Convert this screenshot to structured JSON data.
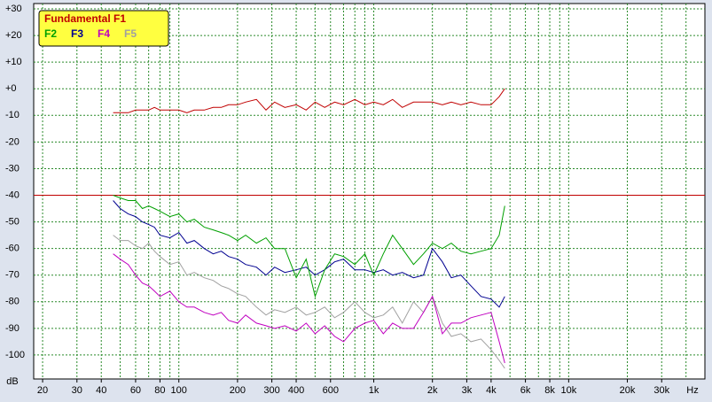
{
  "chart_data": {
    "type": "line",
    "x_scale": "log",
    "grid": true,
    "legend": "upper left",
    "x_label": "Hz",
    "y_label": "dB",
    "xlim": [
      18,
      50000
    ],
    "ylim": [
      -109,
      32
    ],
    "reference_level": -40,
    "reference_color": "#c00000",
    "xticks": [
      20,
      30,
      40,
      60,
      80,
      100,
      200,
      300,
      400,
      600,
      {
        "value": 1000,
        "label": "1k"
      },
      {
        "value": 2000,
        "label": "2k"
      },
      {
        "value": 3000,
        "label": "3k"
      },
      {
        "value": 4000,
        "label": "4k"
      },
      {
        "value": 6000,
        "label": "6k"
      },
      {
        "value": 8000,
        "label": "8k"
      },
      {
        "value": 10000,
        "label": "10k"
      },
      {
        "value": 20000,
        "label": "20k"
      },
      {
        "value": 30000,
        "label": "30k"
      }
    ],
    "xgrid": [
      20,
      30,
      40,
      50,
      60,
      70,
      80,
      90,
      100,
      200,
      300,
      400,
      500,
      600,
      700,
      800,
      900,
      1000,
      2000,
      3000,
      4000,
      5000,
      6000,
      7000,
      8000,
      9000,
      10000,
      20000,
      30000,
      40000
    ],
    "yticks": [
      {
        "value": 30,
        "label": "+30"
      },
      {
        "value": 20,
        "label": "+20"
      },
      {
        "value": 10,
        "label": "+10"
      },
      {
        "value": 0,
        "label": "+0"
      },
      -10,
      -20,
      -30,
      -40,
      -50,
      -60,
      -70,
      -80,
      -90,
      -100
    ],
    "x": [
      46,
      50,
      55,
      60,
      65,
      70,
      75,
      80,
      90,
      100,
      110,
      120,
      135,
      150,
      165,
      180,
      200,
      220,
      250,
      280,
      310,
      350,
      400,
      450,
      500,
      560,
      630,
      700,
      800,
      900,
      1000,
      1120,
      1250,
      1400,
      1600,
      1800,
      2000,
      2250,
      2500,
      2800,
      3150,
      3550,
      4000,
      4400,
      4700
    ],
    "series": [
      {
        "name": "Fundamental F1",
        "color": "#c00000",
        "values": [
          -9,
          -9,
          -9,
          -8,
          -8,
          -8,
          -7,
          -8,
          -8,
          -8,
          -9,
          -8,
          -8,
          -7,
          -7,
          -6,
          -6,
          -5,
          -4,
          -8,
          -5,
          -7,
          -6,
          -8,
          -5,
          -7,
          -5,
          -6,
          -4,
          -6,
          -5,
          -6,
          -4,
          -7,
          -5,
          -5,
          -5,
          -6,
          -5,
          -6,
          -5,
          -6,
          -6,
          -3,
          0
        ]
      },
      {
        "name": "F2",
        "color": "#00a000",
        "values": [
          -40,
          -41,
          -42,
          -42,
          -45,
          -44,
          -45,
          -46,
          -48,
          -47,
          -50,
          -49,
          -52,
          -53,
          -54,
          -55,
          -57,
          -55,
          -58,
          -56,
          -60,
          -60,
          -71,
          -64,
          -78,
          -68,
          -62,
          -63,
          -66,
          -62,
          -70,
          -62,
          -55,
          -60,
          -66,
          -62,
          -58,
          -60,
          -58,
          -61,
          -62,
          -61,
          -60,
          -55,
          -44
        ]
      },
      {
        "name": "F3",
        "color": "#000090",
        "values": [
          -42,
          -45,
          -47,
          -48,
          -50,
          -51,
          -52,
          -55,
          -56,
          -54,
          -58,
          -57,
          -60,
          -62,
          -61,
          -63,
          -64,
          -66,
          -67,
          -70,
          -67,
          -69,
          -68,
          -67,
          -70,
          -68,
          -65,
          -64,
          -68,
          -68,
          -69,
          -68,
          -70,
          -69,
          -71,
          -70,
          -60,
          -65,
          -71,
          -70,
          -74,
          -78,
          -79,
          -82,
          -78
        ]
      },
      {
        "name": "F4",
        "color": "#c000c0",
        "values": [
          -62,
          -64,
          -66,
          -70,
          -73,
          -74,
          -76,
          -78,
          -76,
          -80,
          -82,
          -82,
          -84,
          -85,
          -84,
          -87,
          -88,
          -85,
          -88,
          -89,
          -90,
          -89,
          -91,
          -88,
          -92,
          -89,
          -93,
          -95,
          -90,
          -88,
          -87,
          -92,
          -88,
          -90,
          -90,
          -84,
          -78,
          -92,
          -88,
          -88,
          -86,
          -85,
          -84,
          -95,
          -103
        ]
      },
      {
        "name": "F5",
        "color": "#a0a0a0",
        "values": [
          -55,
          -57,
          -57,
          -59,
          -60,
          -58,
          -61,
          -63,
          -66,
          -65,
          -70,
          -69,
          -71,
          -72,
          -74,
          -75,
          -77,
          -78,
          -82,
          -85,
          -83,
          -84,
          -82,
          -85,
          -84,
          -82,
          -86,
          -84,
          -80,
          -84,
          -86,
          -85,
          -82,
          -88,
          -80,
          -84,
          -78,
          -88,
          -93,
          -92,
          -95,
          -94,
          -98,
          -102,
          -105
        ]
      }
    ]
  }
}
